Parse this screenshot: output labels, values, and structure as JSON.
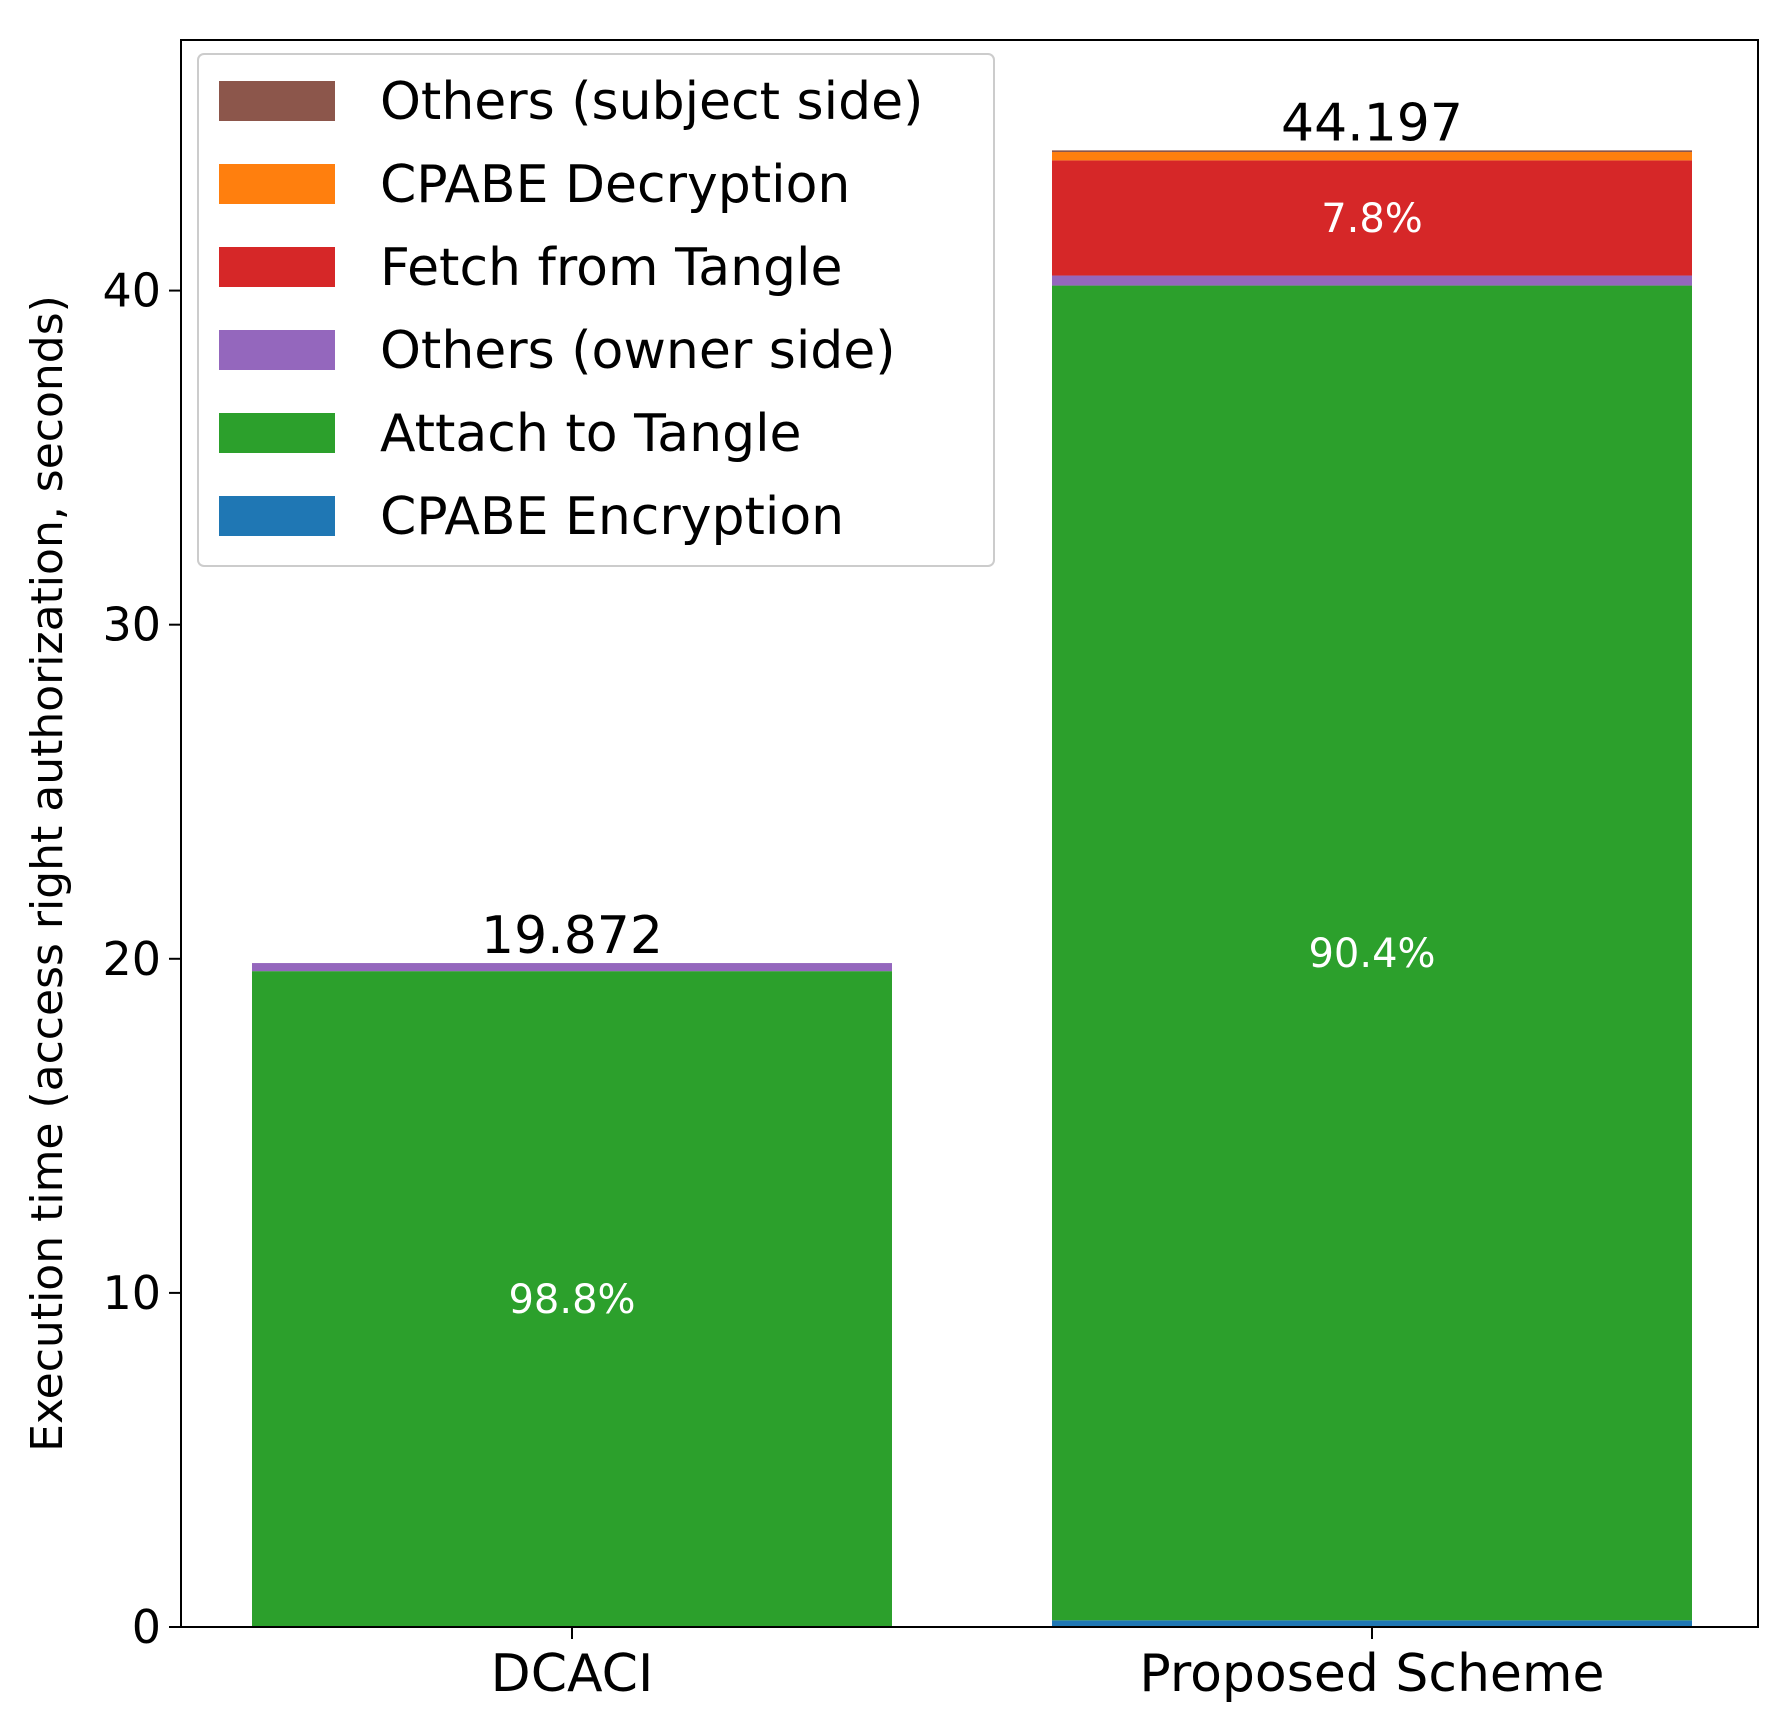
{
  "chart_data": {
    "type": "stacked-bar",
    "title": "",
    "xlabel": "",
    "ylabel": "Execution time (access right authorization, seconds)",
    "ylim": [
      0,
      47.5
    ],
    "yticks": [
      0,
      10,
      20,
      30,
      40
    ],
    "categories": [
      "DCACI",
      "Proposed Scheme"
    ],
    "totals": [
      19.872,
      44.197
    ],
    "total_labels": [
      "19.872",
      "44.197"
    ],
    "series": [
      {
        "name": "CPABE Encryption",
        "color": "#1f77b4",
        "values": [
          0.0,
          0.2
        ]
      },
      {
        "name": "Attach to Tangle",
        "color": "#2ca02c",
        "values": [
          19.63,
          39.95
        ]
      },
      {
        "name": "Others (owner side)",
        "color": "#9467bd",
        "values": [
          0.242,
          0.3
        ]
      },
      {
        "name": "Fetch from Tangle",
        "color": "#d62728",
        "values": [
          0.0,
          3.447
        ]
      },
      {
        "name": "CPABE Decryption",
        "color": "#ff7f0e",
        "values": [
          0.0,
          0.25
        ]
      },
      {
        "name": "Others (subject side)",
        "color": "#8c564b",
        "values": [
          0.0,
          0.05
        ]
      }
    ],
    "segment_labels": [
      {
        "category": "DCACI",
        "series": "Attach to Tangle",
        "text": "98.8%"
      },
      {
        "category": "Proposed Scheme",
        "series": "Attach to Tangle",
        "text": "90.4%"
      },
      {
        "category": "Proposed Scheme",
        "series": "Fetch from Tangle",
        "text": "7.8%"
      }
    ],
    "legend": {
      "placement": "top-left",
      "entries": [
        "Others (subject side)",
        "CPABE Decryption",
        "Fetch from Tangle",
        "Others (owner side)",
        "Attach to Tangle",
        "CPABE Encryption"
      ]
    }
  }
}
